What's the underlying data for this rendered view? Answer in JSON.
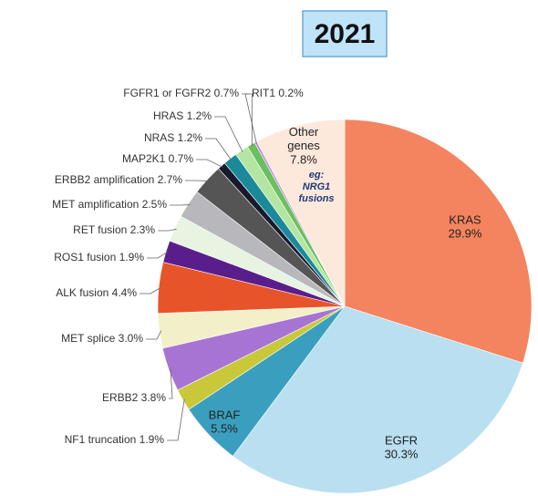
{
  "chart_data": {
    "type": "pie",
    "title": "2021",
    "categories": [
      "KRAS",
      "EGFR",
      "BRAF",
      "NF1 truncation",
      "ERBB2",
      "MET splice",
      "ALK fusion",
      "ROS1 fusion",
      "RET fusion",
      "MET amplification",
      "ERBB2 amplification",
      "MAP2K1",
      "NRAS",
      "HRAS",
      "FGFR1 or FGFR2",
      "RIT1",
      "Other genes"
    ],
    "values": [
      29.9,
      30.3,
      5.5,
      1.9,
      3.8,
      3.0,
      4.4,
      1.9,
      2.3,
      2.5,
      2.7,
      0.7,
      1.2,
      1.2,
      0.7,
      0.2,
      7.8
    ],
    "value_labels": [
      "29.9%",
      "30.3%",
      "5.5%",
      "1.9%",
      "3.8%",
      "3.0%",
      "4.4%",
      "1.9%",
      "2.3%",
      "2.5%",
      "2.7%",
      "0.7%",
      "1.2%",
      "1.2%",
      "0.7%",
      "0.2%",
      "7.8%"
    ],
    "colors": [
      "#f4845f",
      "#b9dff0",
      "#3a9fbf",
      "#c8c83a",
      "#a774d4",
      "#f3efc8",
      "#e8542a",
      "#5a1e8c",
      "#e6f4e1",
      "#b7b7bc",
      "#555555",
      "#1a1a2e",
      "#1a8a9a",
      "#b5e5a3",
      "#6abf5f",
      "#c08ad8",
      "#fde9dc"
    ],
    "annotation": "eg: NRG1 fusions"
  }
}
